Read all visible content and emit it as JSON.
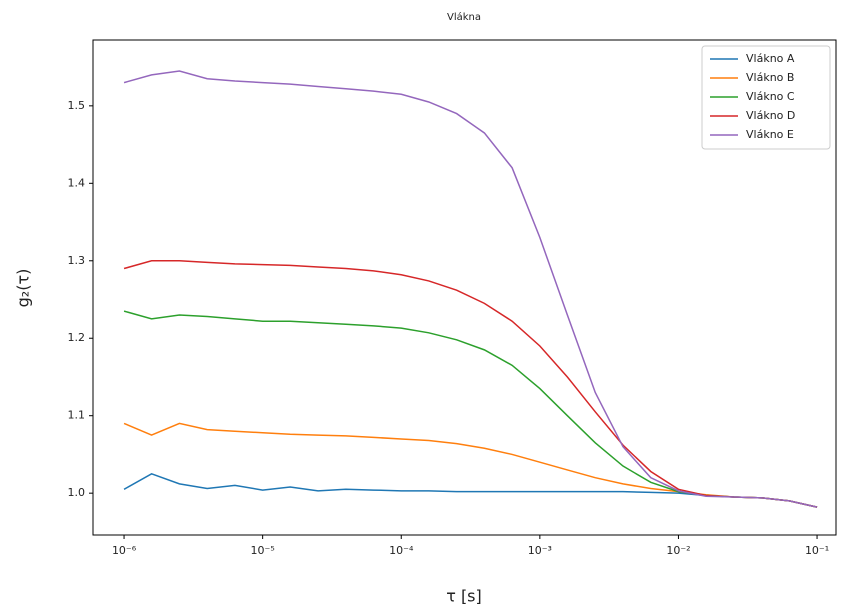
{
  "chart_data": {
    "type": "line",
    "title": "Vlákna",
    "xlabel": "τ [s]",
    "ylabel": "g₂(τ)",
    "log_x": true,
    "legend": "upper right",
    "x": [
      1e-06,
      1.58e-06,
      2.51e-06,
      3.98e-06,
      6.31e-06,
      1e-05,
      1.58e-05,
      2.51e-05,
      3.98e-05,
      6.31e-05,
      0.0001,
      0.000158,
      0.000251,
      0.000398,
      0.000631,
      0.001,
      0.00158,
      0.00251,
      0.00398,
      0.00631,
      0.01,
      0.0158,
      0.0251,
      0.0398,
      0.0631,
      0.1
    ],
    "series": [
      {
        "name": "Vlákno A",
        "color": "#1f77b4",
        "values": [
          1.005,
          1.025,
          1.012,
          1.006,
          1.01,
          1.004,
          1.008,
          1.003,
          1.005,
          1.004,
          1.003,
          1.003,
          1.002,
          1.002,
          1.002,
          1.002,
          1.002,
          1.002,
          1.002,
          1.001,
          1.0,
          0.997,
          0.995,
          0.994,
          0.99,
          0.982
        ]
      },
      {
        "name": "Vlákno B",
        "color": "#ff7f0e",
        "values": [
          1.09,
          1.075,
          1.09,
          1.082,
          1.08,
          1.078,
          1.076,
          1.075,
          1.074,
          1.072,
          1.07,
          1.068,
          1.064,
          1.058,
          1.05,
          1.04,
          1.03,
          1.02,
          1.012,
          1.006,
          1.002,
          0.998,
          0.995,
          0.994,
          0.99,
          0.982
        ]
      },
      {
        "name": "Vlákno C",
        "color": "#2ca02c",
        "values": [
          1.235,
          1.225,
          1.23,
          1.228,
          1.225,
          1.222,
          1.222,
          1.22,
          1.218,
          1.216,
          1.213,
          1.207,
          1.198,
          1.185,
          1.165,
          1.135,
          1.1,
          1.065,
          1.035,
          1.014,
          1.002,
          0.997,
          0.995,
          0.994,
          0.99,
          0.982
        ]
      },
      {
        "name": "Vlákno D",
        "color": "#d62728",
        "values": [
          1.29,
          1.3,
          1.3,
          1.298,
          1.296,
          1.295,
          1.294,
          1.292,
          1.29,
          1.287,
          1.282,
          1.274,
          1.262,
          1.245,
          1.222,
          1.19,
          1.15,
          1.105,
          1.062,
          1.028,
          1.005,
          0.997,
          0.995,
          0.994,
          0.99,
          0.982
        ]
      },
      {
        "name": "Vlákno E",
        "color": "#9467bd",
        "values": [
          1.53,
          1.54,
          1.545,
          1.535,
          1.532,
          1.53,
          1.528,
          1.525,
          1.522,
          1.519,
          1.515,
          1.505,
          1.49,
          1.465,
          1.42,
          1.33,
          1.23,
          1.13,
          1.06,
          1.02,
          1.003,
          0.996,
          0.995,
          0.994,
          0.99,
          0.982
        ]
      }
    ],
    "xlim": [
      5.97e-07,
      0.137
    ],
    "ylim": [
      0.946,
      1.585
    ],
    "xticks": [
      {
        "value": 1e-06,
        "label": "10⁻⁶"
      },
      {
        "value": 1e-05,
        "label": "10⁻⁵"
      },
      {
        "value": 0.0001,
        "label": "10⁻⁴"
      },
      {
        "value": 0.001,
        "label": "10⁻³"
      },
      {
        "value": 0.01,
        "label": "10⁻²"
      },
      {
        "value": 0.1,
        "label": "10⁻¹"
      }
    ],
    "yticks": [
      {
        "value": 1,
        "label": "1.0"
      },
      1.1,
      1.2,
      1.3,
      1.4,
      1.5
    ]
  }
}
